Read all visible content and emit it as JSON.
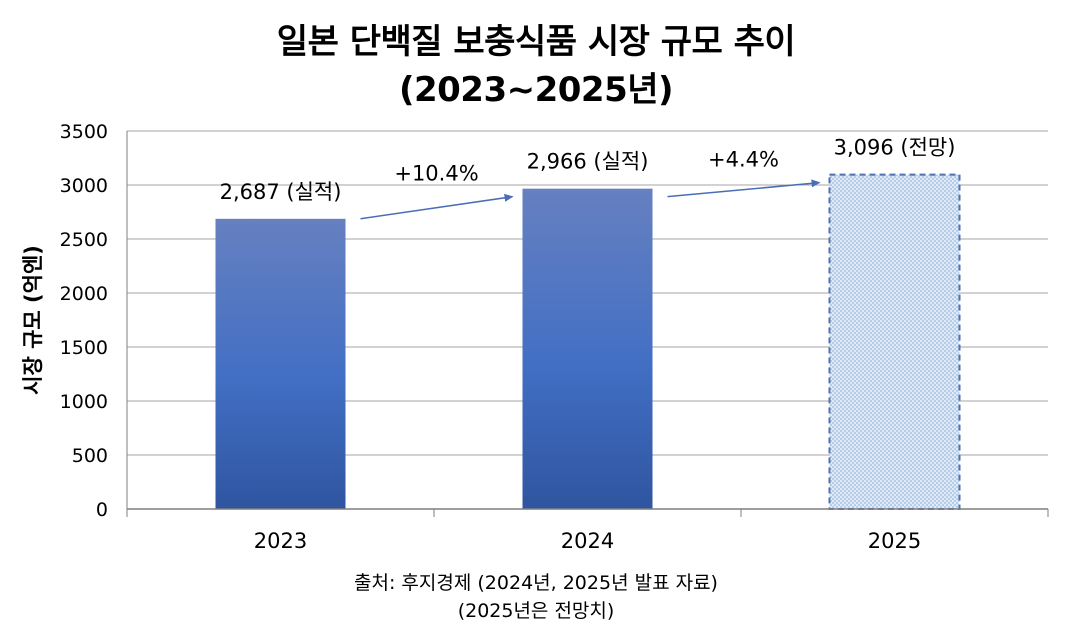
{
  "chart_data": {
    "type": "bar",
    "title_lines": [
      "일본 단백질 보충식품 시장 규모 추이",
      "(2023~2025년)"
    ],
    "ylabel": "시장 규모 (억엔)",
    "xlabel": "",
    "ylim": [
      0,
      3500
    ],
    "y_ticks": [
      0,
      500,
      1000,
      1500,
      2000,
      2500,
      3000,
      3500
    ],
    "grid": true,
    "categories": [
      "2023",
      "2024",
      "2025"
    ],
    "values": [
      2687,
      2966,
      3096
    ],
    "data_labels": [
      "2,687 (실적)",
      "2,966 (실적)",
      "3,096 (전망)"
    ],
    "bar_styles": [
      "actual",
      "actual",
      "forecast"
    ],
    "growth_annotations": [
      {
        "from": "2023",
        "to": "2024",
        "label": "+10.4%"
      },
      {
        "from": "2024",
        "to": "2025",
        "label": "+4.4%"
      }
    ],
    "colors": {
      "bar_top": "#6680C0",
      "bar_mid": "#426FC4",
      "bar_bottom": "#2F55A0",
      "forecast_fill": "#B5CDE8",
      "forecast_dots": "#FFFFFF",
      "forecast_border": "#4E72B0",
      "arrow": "#4A6EB5",
      "grid": "#A6A6A6",
      "axis": "#7F7F7F"
    }
  },
  "source": {
    "line1": "출처: 후지경제 (2024년, 2025년 발표 자료)",
    "line2": "(2025년은 전망치)"
  }
}
